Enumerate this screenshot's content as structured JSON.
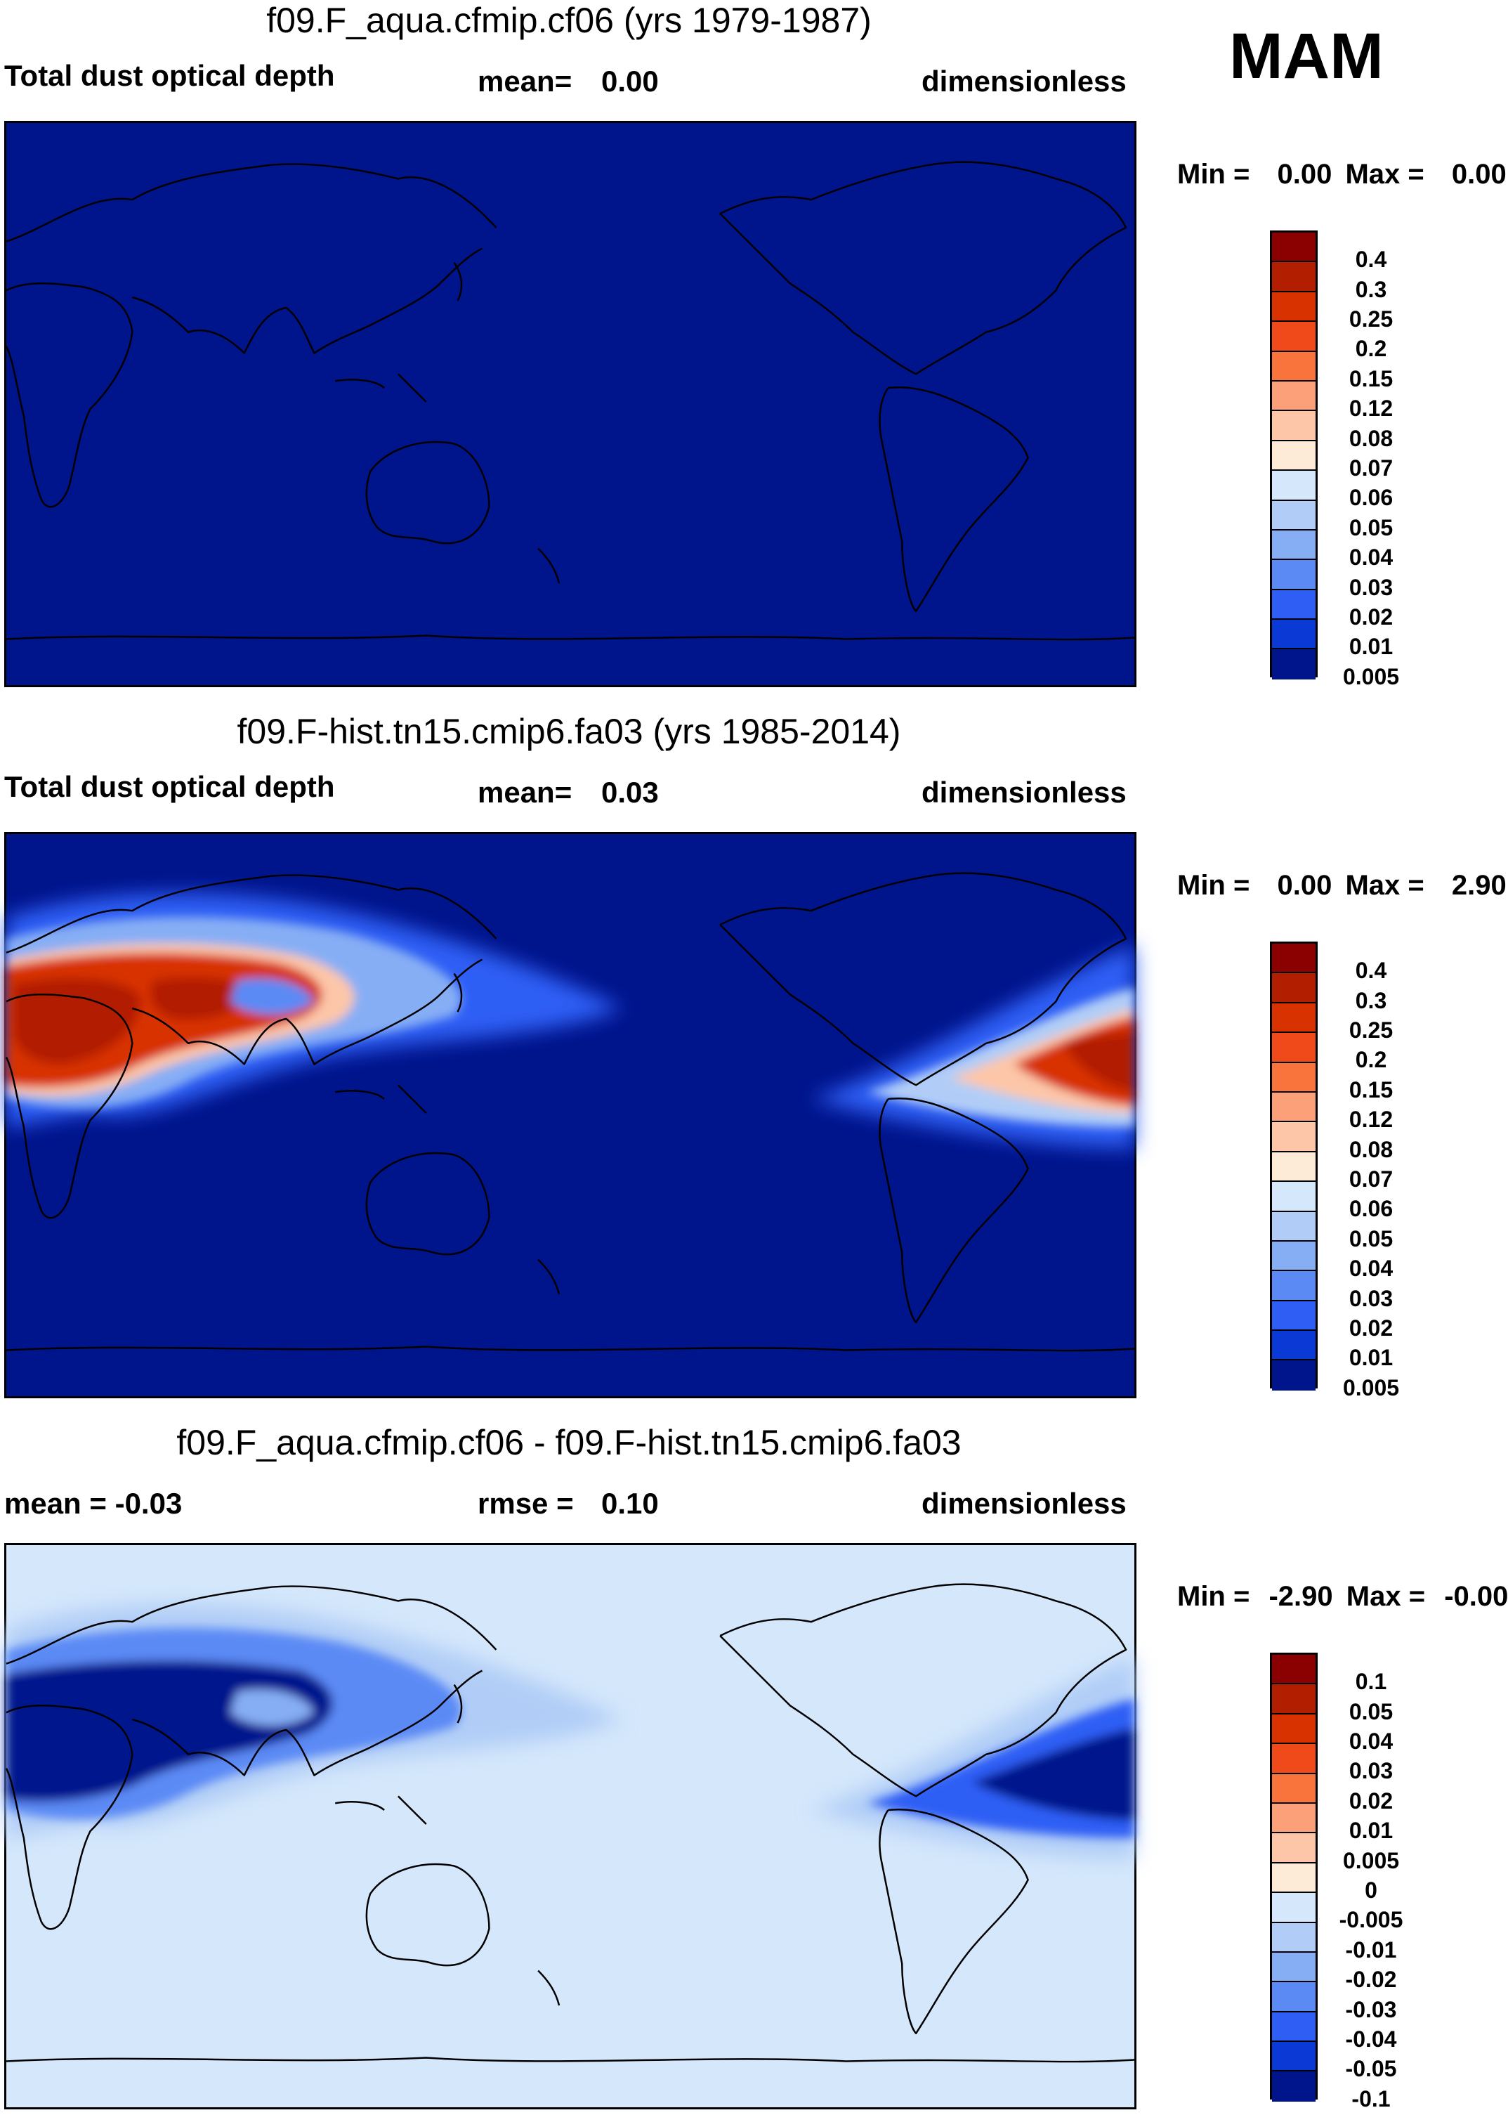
{
  "season": "MAM",
  "panels": [
    {
      "title": "f09.F_aqua.cfmip.cf06 (yrs 1979-1987)",
      "left": "Total dust optical depth",
      "mid_label": "mean=",
      "mid_value": "0.00",
      "right": "dimensionless",
      "min_label": "Min =",
      "min_value": "0.00",
      "max_label": "Max =",
      "max_value": "0.00",
      "colorbar": [
        "0.4",
        "0.3",
        "0.25",
        "0.2",
        "0.15",
        "0.12",
        "0.08",
        "0.07",
        "0.06",
        "0.05",
        "0.04",
        "0.03",
        "0.02",
        "0.01",
        "0.005"
      ],
      "background": "#00148c"
    },
    {
      "title": "f09.F-hist.tn15.cmip6.fa03 (yrs 1985-2014)",
      "left": "Total dust optical depth",
      "mid_label": "mean=",
      "mid_value": "0.03",
      "right": "dimensionless",
      "min_label": "Min =",
      "min_value": "0.00",
      "max_label": "Max =",
      "max_value": "2.90",
      "colorbar": [
        "0.4",
        "0.3",
        "0.25",
        "0.2",
        "0.15",
        "0.12",
        "0.08",
        "0.07",
        "0.06",
        "0.05",
        "0.04",
        "0.03",
        "0.02",
        "0.01",
        "0.005"
      ],
      "background": "#00148c"
    },
    {
      "title": "f09.F_aqua.cfmip.cf06 - f09.F-hist.tn15.cmip6.fa03",
      "left": "mean =  -0.03",
      "mid_label": "rmse =",
      "mid_value": "0.10",
      "right": "dimensionless",
      "min_label": "Min =",
      "min_value": "-2.90",
      "max_label": "Max =",
      "max_value": "-0.00",
      "colorbar": [
        "0.1",
        "0.05",
        "0.04",
        "0.03",
        "0.02",
        "0.01",
        "0.005",
        "0",
        "-0.005",
        "-0.01",
        "-0.02",
        "-0.03",
        "-0.04",
        "-0.05",
        "-0.1"
      ],
      "background": "#d4e7fb"
    }
  ],
  "colorbar_colors": [
    "#8b0000",
    "#b21e00",
    "#d73200",
    "#f04a1a",
    "#f9743c",
    "#fca07a",
    "#fdc6a8",
    "#fdebd8",
    "#d4e7fb",
    "#b1cdf7",
    "#86aef5",
    "#5b8af5",
    "#2f5ef5",
    "#0a39d6",
    "#00148c"
  ],
  "colors": {
    "deep_blue": "#00148c",
    "light_blue": "#d4e7fb",
    "dust_red": "#c8321a",
    "coast": "#000000"
  }
}
